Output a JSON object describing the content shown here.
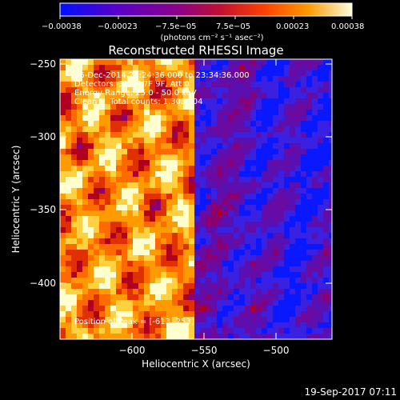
{
  "colorbar": {
    "tick_labels": [
      "−0.00038",
      "−0.00023",
      "−7.5e−05",
      "7.5e−05",
      "0.00023",
      "0.00038"
    ],
    "unit_label": "(photons cm⁻² s⁻¹ asec⁻²)",
    "min": -0.00038,
    "max": 0.00038,
    "colors": [
      "#0010ff",
      "#5a00c8",
      "#8a0088",
      "#c01030",
      "#ff4000",
      "#ff9a00",
      "#ffffe0"
    ]
  },
  "plot": {
    "title": "Reconstructed RHESSI Image",
    "xlabel": "Heliocentric X (arcsec)",
    "ylabel": "Heliocentric Y (arcsec)",
    "x_ticks": [
      "−600",
      "−550",
      "−500"
    ],
    "y_ticks": [
      "−250",
      "−300",
      "−350",
      "−400"
    ],
    "xlim": [
      -648,
      -478
    ],
    "ylim": [
      -425,
      -245
    ]
  },
  "info": {
    "line1": "26-Dec-2014 23:24:36.000 to 23:34:36.000",
    "line2": "Detectors: 3F 6F 7F 9F, Att 0",
    "line3": "Energy Range: 25.0 - 50.0 keV",
    "line4": "Clean     Total counts: 1.30E+04",
    "peak": "Position of Peak = [-613,-253]"
  },
  "timestamp": "19-Sep-2017 07:11"
}
